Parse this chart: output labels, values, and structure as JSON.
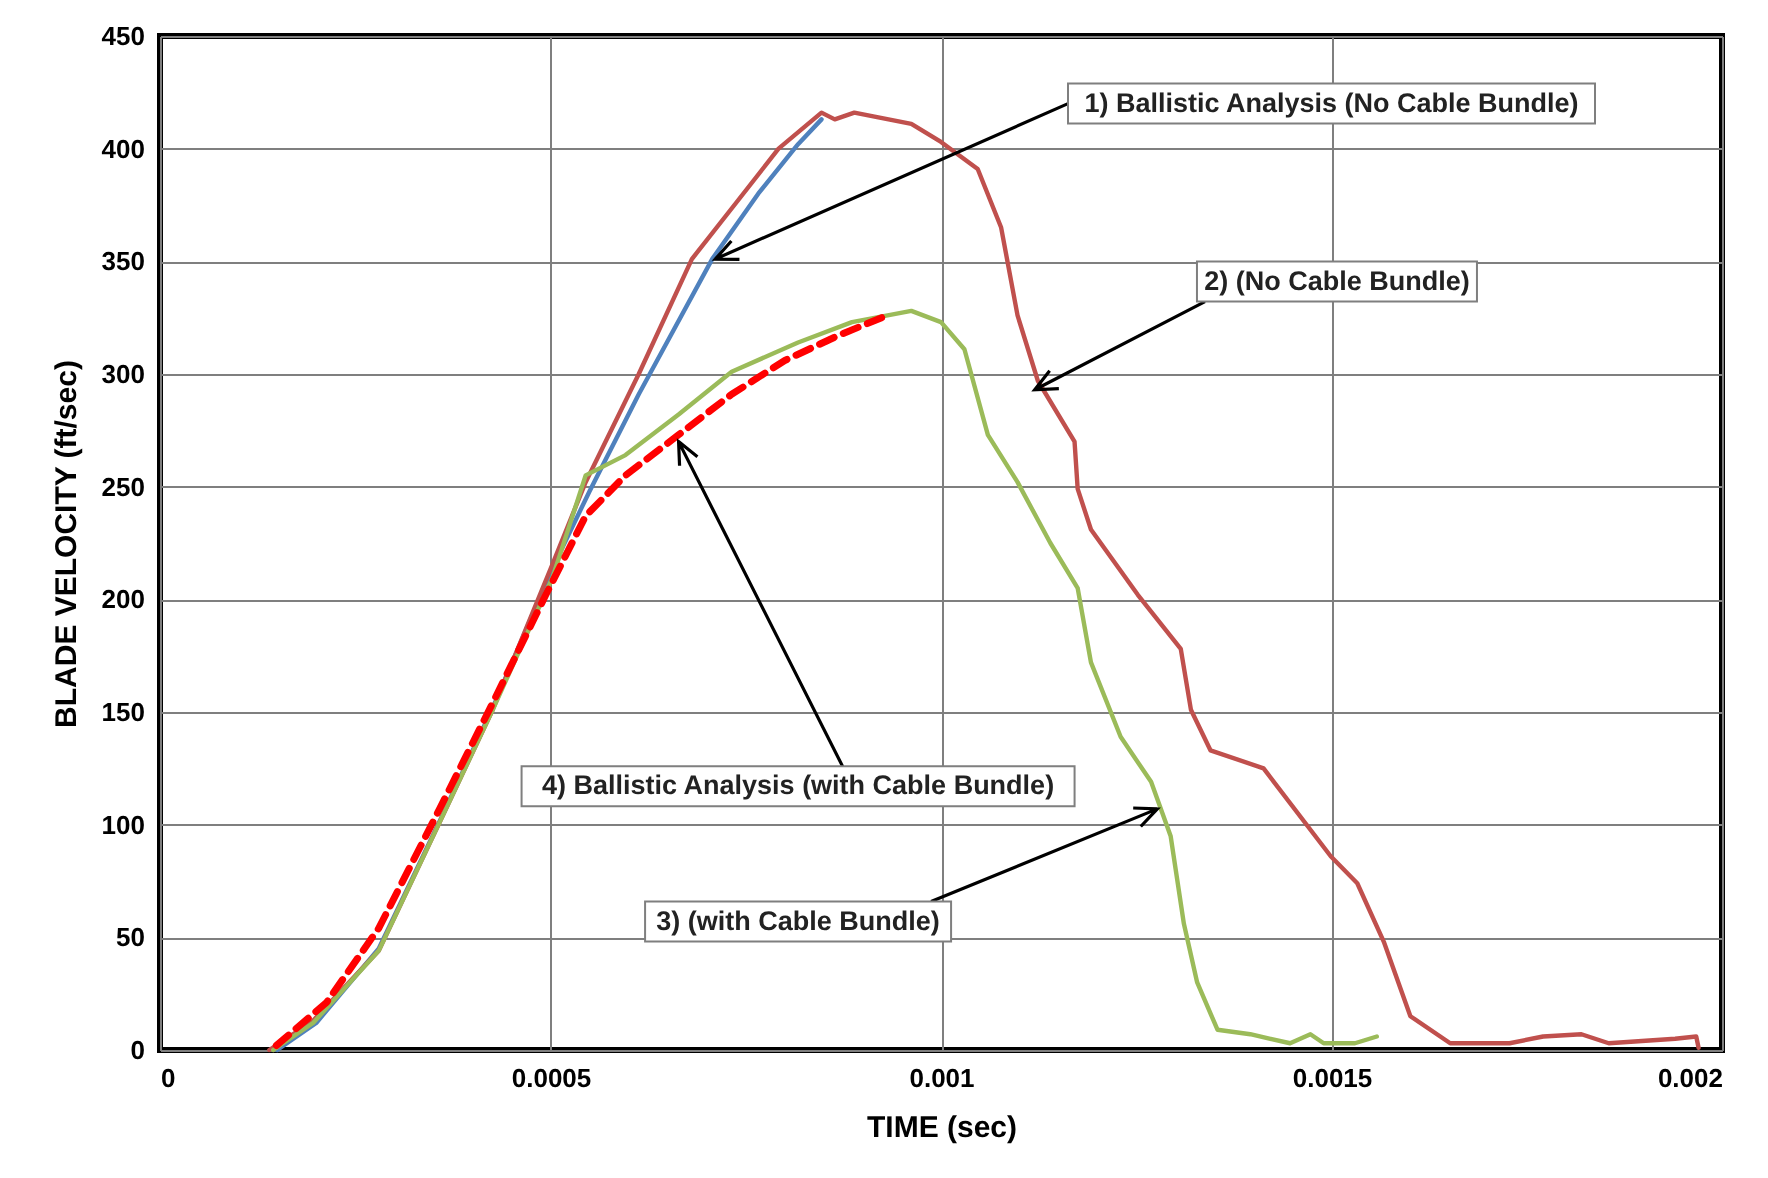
{
  "chart_data": {
    "type": "line",
    "xlabel": "TIME (sec)",
    "ylabel": "BLADE VELOCITY (ft/sec)",
    "xlim": [
      0,
      0.002
    ],
    "xticks": [
      0,
      0.0005,
      0.001,
      0.0015,
      0.002
    ],
    "ylim": [
      0,
      450
    ],
    "yticks": [
      0,
      50,
      100,
      150,
      200,
      250,
      300,
      350,
      400,
      450
    ],
    "grid": true,
    "marker": "none",
    "series": [
      {
        "color": "#4f81bd",
        "line_style": "solid",
        "x": [
          0.00015,
          0.0002,
          0.00028,
          0.00036,
          0.00043,
          0.0005,
          0.00055,
          0.000613,
          0.000707,
          0.000766,
          0.000817,
          0.000847
        ],
        "values": [
          0,
          12,
          45,
          103,
          155,
          212,
          248,
          291,
          351,
          380,
          402,
          413
        ]
      },
      {
        "color": "#c0504d",
        "line_style": "solid",
        "x": [
          0.00014,
          0.000196,
          0.00028,
          0.000358,
          0.000426,
          0.000503,
          0.000545,
          0.000613,
          0.000681,
          0.00074,
          0.000792,
          0.000847,
          0.000864,
          0.000889,
          0.000962,
          0.001,
          0.001047,
          0.001077,
          0.001098,
          0.001124,
          0.001171,
          0.001175,
          0.001192,
          0.001252,
          0.001307,
          0.00132,
          0.001345,
          0.001413,
          0.001499,
          0.001533,
          0.001567,
          0.001601,
          0.001652,
          0.001728,
          0.001771,
          0.00182,
          0.001855,
          0.00194,
          0.001967,
          0.00197
        ],
        "values": [
          0,
          13,
          44,
          101,
          151,
          216,
          252,
          300,
          351,
          377,
          400,
          416,
          413,
          416,
          411,
          403,
          391,
          365,
          326,
          297,
          270,
          249,
          231,
          202,
          178,
          151,
          133,
          125,
          86,
          74,
          48,
          15,
          3,
          3,
          6,
          7,
          3,
          5,
          6,
          1
        ]
      },
      {
        "color": "#9bbb59",
        "line_style": "solid",
        "x": [
          0.000145,
          0.000196,
          0.00028,
          0.000358,
          0.000426,
          0.000503,
          0.000545,
          0.000596,
          0.000664,
          0.000732,
          0.000817,
          0.000886,
          0.000962,
          0.001,
          0.00103,
          0.00106,
          0.001098,
          0.00114,
          0.001175,
          0.001192,
          0.00123,
          0.001269,
          0.001294,
          0.001311,
          0.001328,
          0.001354,
          0.001396,
          0.001447,
          0.001473,
          0.00149,
          0.00153,
          0.001558
        ],
        "values": [
          0,
          12,
          44,
          101,
          151,
          210,
          255,
          264,
          282,
          301,
          314,
          323,
          328,
          323,
          311,
          273,
          252,
          225,
          205,
          172,
          139,
          119,
          95,
          56,
          30,
          9,
          7,
          3,
          7,
          3,
          3,
          6
        ]
      },
      {
        "color": "#ff0000",
        "line_style": "dashed",
        "x": [
          0.000149,
          0.000213,
          0.00028,
          0.000358,
          0.000426,
          0.000494,
          0.000545,
          0.000596,
          0.000664,
          0.000732,
          0.0008,
          0.000868,
          0.000924
        ],
        "values": [
          2,
          21,
          54,
          107,
          154,
          202,
          237,
          255,
          273,
          291,
          306,
          317,
          325
        ]
      }
    ],
    "annotations": [
      {
        "text": "1) Ballistic Analysis (No Cable Bundle)",
        "x": 0.000711,
        "y": 351
      },
      {
        "text": "2) (No Cable Bundle)",
        "x": 0.00112,
        "y": 293
      },
      {
        "text": "3) (with Cable Bundle)",
        "x": 0.001277,
        "y": 107
      },
      {
        "text": "4) Ballistic Analysis (with Cable Bundle)",
        "x": 0.000664,
        "y": 270
      }
    ]
  }
}
